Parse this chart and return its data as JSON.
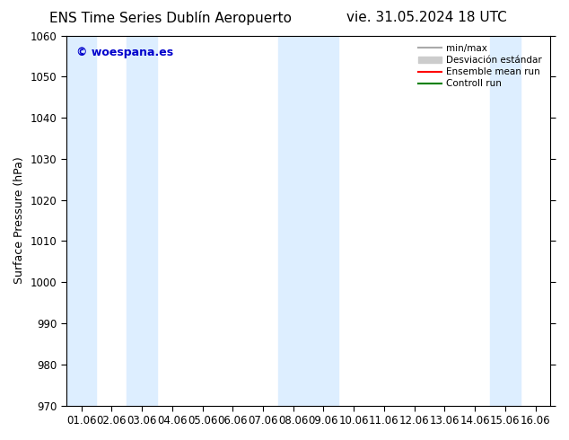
{
  "title_left": "ENS Time Series Dublín Aeropuerto",
  "title_right": "vie. 31.05.2024 18 UTC",
  "ylabel": "Surface Pressure (hPa)",
  "ylim": [
    970,
    1060
  ],
  "yticks": [
    970,
    980,
    990,
    1000,
    1010,
    1020,
    1030,
    1040,
    1050,
    1060
  ],
  "xtick_labels": [
    "01.06",
    "02.06",
    "03.06",
    "04.06",
    "05.06",
    "06.06",
    "07.06",
    "08.06",
    "09.06",
    "10.06",
    "11.06",
    "12.06",
    "13.06",
    "14.06",
    "15.06",
    "16.06"
  ],
  "watermark": "© woespana.es",
  "watermark_color": "#0000cc",
  "bg_color": "#ffffff",
  "band_color": "#ddeeff",
  "band_positions": [
    0,
    2,
    7,
    8,
    14
  ],
  "legend_minmax_color": "#aaaaaa",
  "legend_std_color": "#cccccc",
  "legend_mean_color": "#ff0000",
  "legend_ctrl_color": "#008000",
  "legend_minmax_label": "min/max",
  "legend_std_label": "Desviación estándar",
  "legend_mean_label": "Ensemble mean run",
  "legend_ctrl_label": "Controll run",
  "title_fontsize": 11,
  "axis_fontsize": 9,
  "tick_fontsize": 8.5,
  "figsize": [
    6.34,
    4.9
  ],
  "dpi": 100
}
